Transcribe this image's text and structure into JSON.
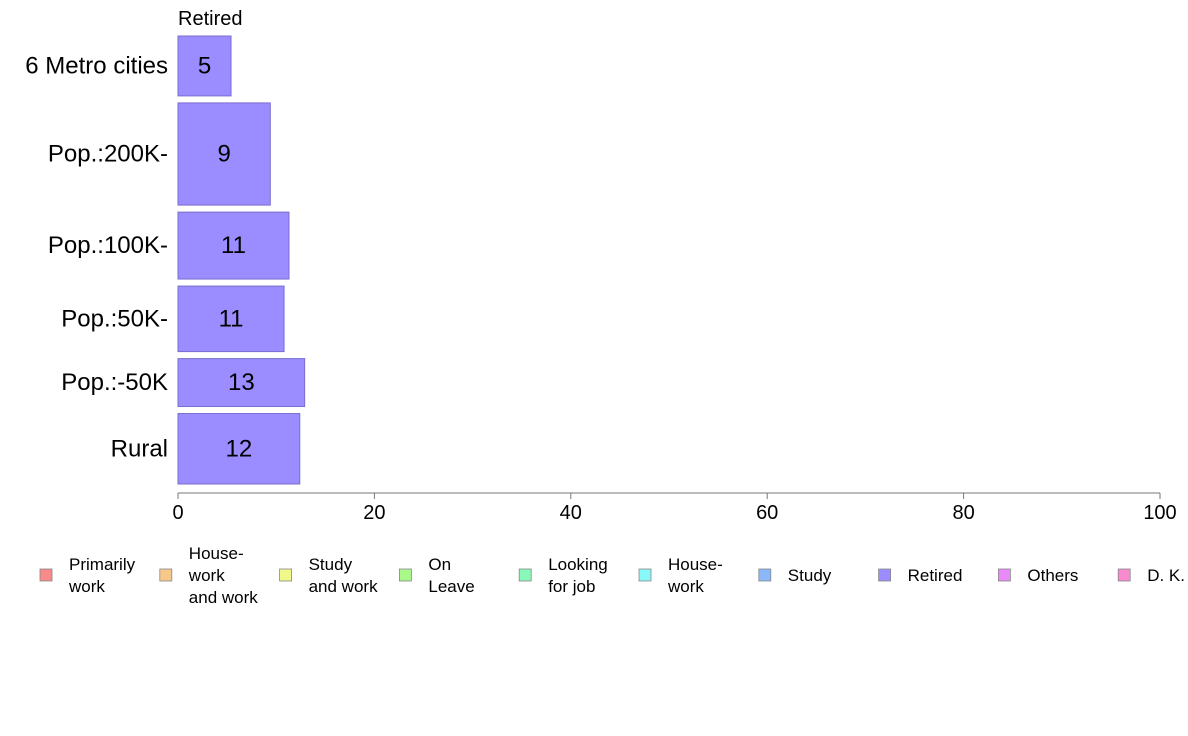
{
  "chart_data": {
    "type": "bar",
    "orientation": "horizontal",
    "title": "Retired",
    "categories": [
      "6 Metro cities",
      "Pop.:200K-",
      "Pop.:100K-",
      "Pop.:50K-",
      "Pop.:-50K",
      "Rural"
    ],
    "values": [
      5,
      9,
      11,
      11,
      13,
      12
    ],
    "value_labels": [
      "5",
      "9",
      "11",
      "11",
      "13",
      "12"
    ],
    "bar_lengths": [
      5.4,
      9.4,
      11.3,
      10.8,
      12.9,
      12.4
    ],
    "bar_weights": [
      0.85,
      1.45,
      0.95,
      0.93,
      0.68,
      1.0
    ],
    "xlim": [
      0,
      100
    ],
    "xticks": [
      0,
      20,
      40,
      60,
      80,
      100
    ],
    "bar_color": "#9b8cff",
    "bar_stroke": "#7a6ed0",
    "grid": false,
    "legend_position": "bottom",
    "legend": [
      {
        "lines": [
          "Primarily",
          "work"
        ],
        "color": "#f88a8a"
      },
      {
        "lines": [
          "House-",
          "work",
          "and work"
        ],
        "color": "#f8c88a"
      },
      {
        "lines": [
          "Study",
          "and work"
        ],
        "color": "#f0f88a"
      },
      {
        "lines": [
          "On",
          "Leave"
        ],
        "color": "#a8f88a"
      },
      {
        "lines": [
          "Looking",
          "for job"
        ],
        "color": "#8af8b8"
      },
      {
        "lines": [
          "House-",
          "work"
        ],
        "color": "#8af8f8"
      },
      {
        "lines": [
          "Study"
        ],
        "color": "#8ab8f8"
      },
      {
        "lines": [
          "Retired"
        ],
        "color": "#9b8cff"
      },
      {
        "lines": [
          "Others"
        ],
        "color": "#e88af8"
      },
      {
        "lines": [
          "D. K."
        ],
        "color": "#f88ad0"
      }
    ]
  }
}
